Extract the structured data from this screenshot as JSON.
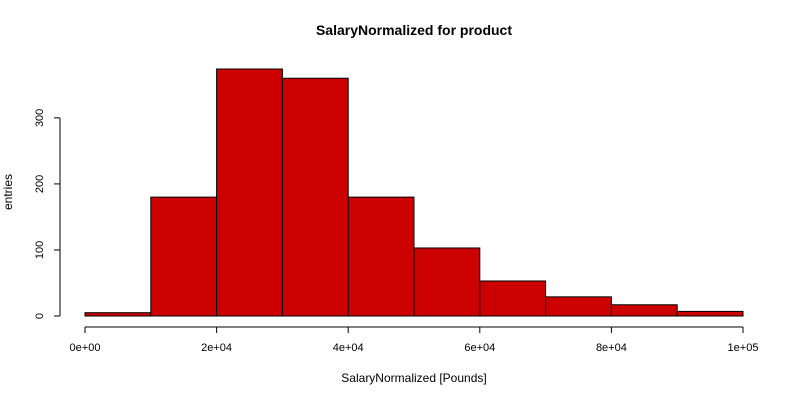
{
  "chart_data": {
    "type": "bar",
    "title": "SalaryNormalized for product",
    "xlabel": "SalaryNormalized [Pounds]",
    "ylabel": "entries",
    "bin_edges": [
      0,
      10000,
      20000,
      30000,
      40000,
      50000,
      60000,
      70000,
      80000,
      90000,
      100000
    ],
    "values": [
      5,
      180,
      374,
      360,
      180,
      103,
      53,
      29,
      17,
      7
    ],
    "xlim": [
      0,
      100000
    ],
    "ylim": [
      0,
      374
    ],
    "x_ticks": [
      0,
      20000,
      40000,
      60000,
      80000,
      100000
    ],
    "x_tick_labels": [
      "0e+00",
      "2e+04",
      "4e+04",
      "6e+04",
      "8e+04",
      "1e+05"
    ],
    "y_ticks": [
      0,
      100,
      200,
      300
    ],
    "y_tick_labels": [
      "0",
      "100",
      "200",
      "300"
    ],
    "bar_color": "#CC0000",
    "bar_border_color": "#000000",
    "grid": false,
    "legend": "none"
  }
}
